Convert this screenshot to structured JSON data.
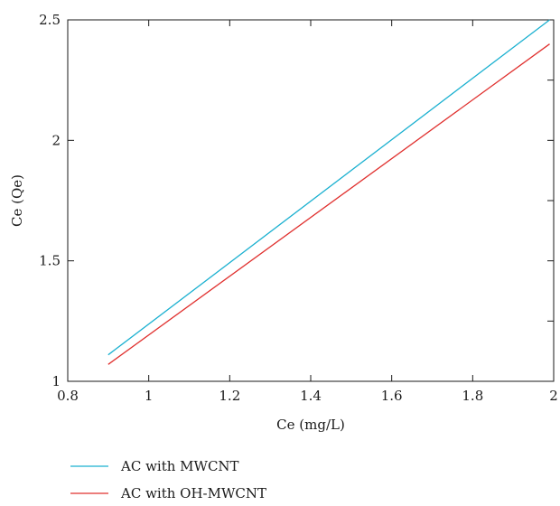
{
  "chart_data": {
    "type": "line",
    "title": "",
    "xlabel": "Ce (mg/L)",
    "ylabel": "Ce (Qe)",
    "xlim": [
      0.8,
      2.0
    ],
    "ylim": [
      1.0,
      2.5
    ],
    "x_ticks": [
      0.8,
      1.0,
      1.2,
      1.4,
      1.6,
      1.8,
      2.0
    ],
    "y_ticks": [
      1.0,
      1.5,
      2.0,
      2.5
    ],
    "x_tick_labels": [
      "0.8",
      "1",
      "1.2",
      "1.4",
      "1.6",
      "1.8",
      "2"
    ],
    "y_tick_labels": [
      "1",
      "1.5",
      "2",
      "2.5"
    ],
    "grid": false,
    "legend_position": "bottom",
    "series": [
      {
        "name": "AC with MWCNT",
        "color": "#1ab0d0",
        "x": [
          0.9,
          1.99
        ],
        "y": [
          1.11,
          2.5
        ]
      },
      {
        "name": "AC with OH-MWCNT",
        "color": "#e0302e",
        "x": [
          0.9,
          1.99
        ],
        "y": [
          1.07,
          2.4
        ]
      }
    ]
  }
}
